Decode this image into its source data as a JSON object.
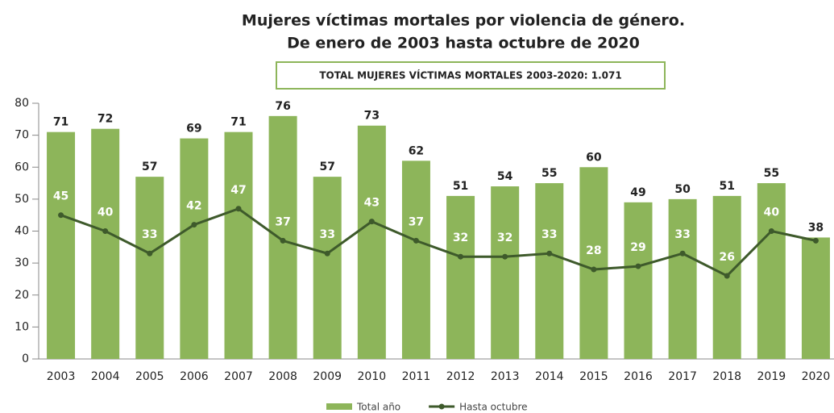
{
  "chart_data": {
    "type": "bar+line",
    "title": [
      "Mujeres víctimas mortales por violencia de género.",
      "De enero de 2003 hasta octubre de 2020"
    ],
    "subtitle": "TOTAL MUJERES VÍCTIMAS MORTALES 2003-2020:  1.071",
    "categories": [
      "2003",
      "2004",
      "2005",
      "2006",
      "2007",
      "2008",
      "2009",
      "2010",
      "2011",
      "2012",
      "2013",
      "2014",
      "2015",
      "2016",
      "2017",
      "2018",
      "2019",
      "2020"
    ],
    "series": [
      {
        "name": "Total año",
        "type": "bar",
        "color": "#8db55a",
        "values": [
          71,
          72,
          57,
          69,
          71,
          76,
          57,
          73,
          62,
          51,
          54,
          55,
          60,
          49,
          50,
          51,
          55,
          38
        ]
      },
      {
        "name": "Hasta octubre",
        "type": "line",
        "color": "#3e5a2b",
        "values": [
          45,
          40,
          33,
          42,
          47,
          37,
          33,
          43,
          37,
          32,
          32,
          33,
          28,
          29,
          33,
          26,
          40,
          37
        ],
        "value_labels": [
          "45",
          "40",
          "33",
          "42",
          "47",
          "37",
          "33",
          "43",
          "37",
          "32",
          "32",
          "33",
          "28",
          "29",
          "33",
          "26",
          "40",
          null
        ]
      }
    ],
    "ylim": [
      0,
      80
    ],
    "yticks": [
      0,
      10,
      20,
      30,
      40,
      50,
      60,
      70,
      80
    ],
    "legend": "bottom"
  }
}
